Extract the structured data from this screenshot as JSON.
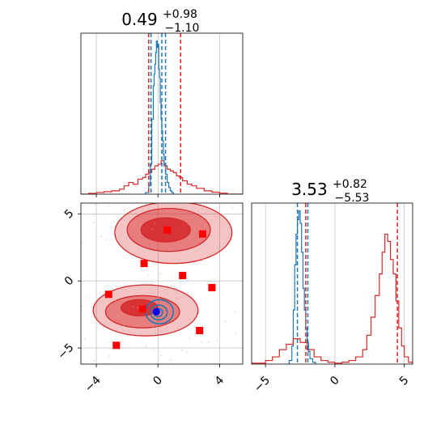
{
  "colors": {
    "red": "#d62728",
    "blue": "#1f77b4",
    "square": "#ff0000",
    "grid": "#b0b0b0"
  },
  "chart_data": [
    {
      "type": "histogram",
      "panel": "x-marginal",
      "title": {
        "value": "0.49",
        "plus": "+0.98",
        "minus": "−1.10"
      },
      "xlim": [
        -5.0,
        5.5
      ],
      "xticks": [
        -4,
        0,
        4
      ],
      "grid": true,
      "series": [
        {
          "color": "red",
          "edges": [
            -5.0,
            -4.5,
            -4.0,
            -3.5,
            -3.0,
            -2.5,
            -2.2,
            -1.9,
            -1.6,
            -1.3,
            -1.0,
            -0.8,
            -0.6,
            -0.4,
            -0.2,
            0.0,
            0.2,
            0.4,
            0.6,
            0.8,
            1.0,
            1.2,
            1.4,
            1.6,
            1.9,
            2.2,
            2.5,
            3.0,
            3.5,
            4.0,
            4.5,
            5.5
          ],
          "values": [
            0,
            0.005,
            0.01,
            0.015,
            0.02,
            0.03,
            0.05,
            0.07,
            0.06,
            0.09,
            0.1,
            0.12,
            0.13,
            0.15,
            0.17,
            0.18,
            0.2,
            0.17,
            0.15,
            0.14,
            0.13,
            0.11,
            0.1,
            0.08,
            0.06,
            0.05,
            0.035,
            0.02,
            0.012,
            0.006,
            0
          ]
        },
        {
          "color": "blue",
          "edges": [
            -0.8,
            -0.6,
            -0.5,
            -0.4,
            -0.3,
            -0.25,
            -0.2,
            -0.15,
            -0.1,
            -0.05,
            0.0,
            0.05,
            0.1,
            0.15,
            0.2,
            0.25,
            0.3,
            0.35,
            0.4,
            0.5,
            0.6,
            0.7,
            0.8,
            0.9,
            1.0
          ],
          "values": [
            0.01,
            0.05,
            0.18,
            0.45,
            0.65,
            0.72,
            0.78,
            0.85,
            0.92,
            0.88,
            0.9,
            0.75,
            0.7,
            0.55,
            0.45,
            0.38,
            0.32,
            0.24,
            0.18,
            0.12,
            0.07,
            0.04,
            0.02,
            0.01
          ]
        }
      ],
      "vlines": [
        {
          "x": -0.6,
          "color": "red"
        },
        {
          "x": 0.49,
          "color": "blue"
        },
        {
          "x": 1.47,
          "color": "red"
        },
        {
          "x": -0.45,
          "color": "blue"
        },
        {
          "x": 0.25,
          "color": "blue"
        }
      ]
    },
    {
      "type": "histogram",
      "panel": "y-marginal",
      "title": {
        "value": "3.53",
        "plus": "+0.82",
        "minus": "−5.53"
      },
      "xlim": [
        -6.0,
        5.6
      ],
      "xticks": [
        -5,
        0,
        5
      ],
      "grid": true,
      "series": [
        {
          "color": "blue",
          "edges": [
            -3.3,
            -3.1,
            -3.0,
            -2.9,
            -2.8,
            -2.7,
            -2.6,
            -2.5,
            -2.4,
            -2.3,
            -2.2,
            -2.1,
            -2.0,
            -1.9,
            -1.8,
            -1.6,
            -1.4
          ],
          "values": [
            0.02,
            0.1,
            0.3,
            0.55,
            0.72,
            0.8,
            0.85,
            0.78,
            0.62,
            0.42,
            0.3,
            0.2,
            0.12,
            0.07,
            0.03,
            0.01
          ]
        },
        {
          "color": "red",
          "edges": [
            -6.0,
            -5.0,
            -4.5,
            -4.0,
            -3.5,
            -3.0,
            -2.5,
            -2.0,
            -1.5,
            -1.0,
            -0.5,
            0.0,
            0.5,
            1.0,
            1.5,
            2.0,
            2.3,
            2.6,
            2.9,
            3.2,
            3.4,
            3.6,
            3.8,
            4.0,
            4.2,
            4.4,
            4.6,
            4.8,
            5.0,
            5.3,
            5.6
          ],
          "values": [
            0.005,
            0.02,
            0.04,
            0.08,
            0.11,
            0.14,
            0.12,
            0.08,
            0.04,
            0.02,
            0.01,
            0.005,
            0.01,
            0.02,
            0.04,
            0.08,
            0.16,
            0.26,
            0.38,
            0.5,
            0.62,
            0.72,
            0.68,
            0.58,
            0.5,
            0.35,
            0.2,
            0.1,
            0.04,
            0.01
          ]
        }
      ],
      "vlines": [
        {
          "x": -2.7,
          "color": "blue"
        },
        {
          "x": -2.1,
          "color": "red"
        },
        {
          "x": -1.95,
          "color": "blue"
        },
        {
          "x": 4.5,
          "color": "red"
        }
      ]
    },
    {
      "type": "scatter",
      "panel": "joint",
      "xlim": [
        -5.0,
        5.5
      ],
      "ylim": [
        -6.2,
        5.8
      ],
      "xticks": [
        -4,
        0,
        4
      ],
      "yticks": [
        -5,
        0,
        5
      ],
      "grid": true,
      "contours": {
        "red": [
          {
            "cx": 1.0,
            "cy": 3.6,
            "rx": 3.8,
            "ry": 2.3,
            "level": 0.35
          },
          {
            "cx": 0.7,
            "cy": 3.8,
            "rx": 2.7,
            "ry": 1.6,
            "level": 0.7
          },
          {
            "cx": 0.5,
            "cy": 3.8,
            "rx": 1.6,
            "ry": 0.9,
            "level": 1.0
          },
          {
            "cx": -0.8,
            "cy": -2.2,
            "rx": 3.4,
            "ry": 1.9,
            "level": 0.35
          },
          {
            "cx": -1.0,
            "cy": -2.3,
            "rx": 2.4,
            "ry": 1.2,
            "level": 0.7
          },
          {
            "cx": -1.2,
            "cy": -2.0,
            "rx": 1.2,
            "ry": 0.6,
            "level": 1.0
          }
        ],
        "blue": [
          {
            "cx": 0.1,
            "cy": -2.3,
            "rx": 0.9,
            "ry": 0.9
          },
          {
            "cx": 0.05,
            "cy": -2.35,
            "rx": 0.55,
            "ry": 0.55
          },
          {
            "cx": 0.0,
            "cy": -2.35,
            "rx": 0.3,
            "ry": 0.3
          }
        ]
      },
      "truth": {
        "x": -0.1,
        "y": -2.3
      },
      "squares": [
        {
          "x": 0.6,
          "y": 3.8
        },
        {
          "x": 2.9,
          "y": 3.5
        },
        {
          "x": -0.9,
          "y": 1.3
        },
        {
          "x": 1.6,
          "y": 0.4
        },
        {
          "x": 3.5,
          "y": -0.5
        },
        {
          "x": -3.2,
          "y": -1.0
        },
        {
          "x": -1.0,
          "y": -2.1
        },
        {
          "x": 2.7,
          "y": -3.7
        },
        {
          "x": -2.7,
          "y": -4.8
        }
      ]
    }
  ]
}
